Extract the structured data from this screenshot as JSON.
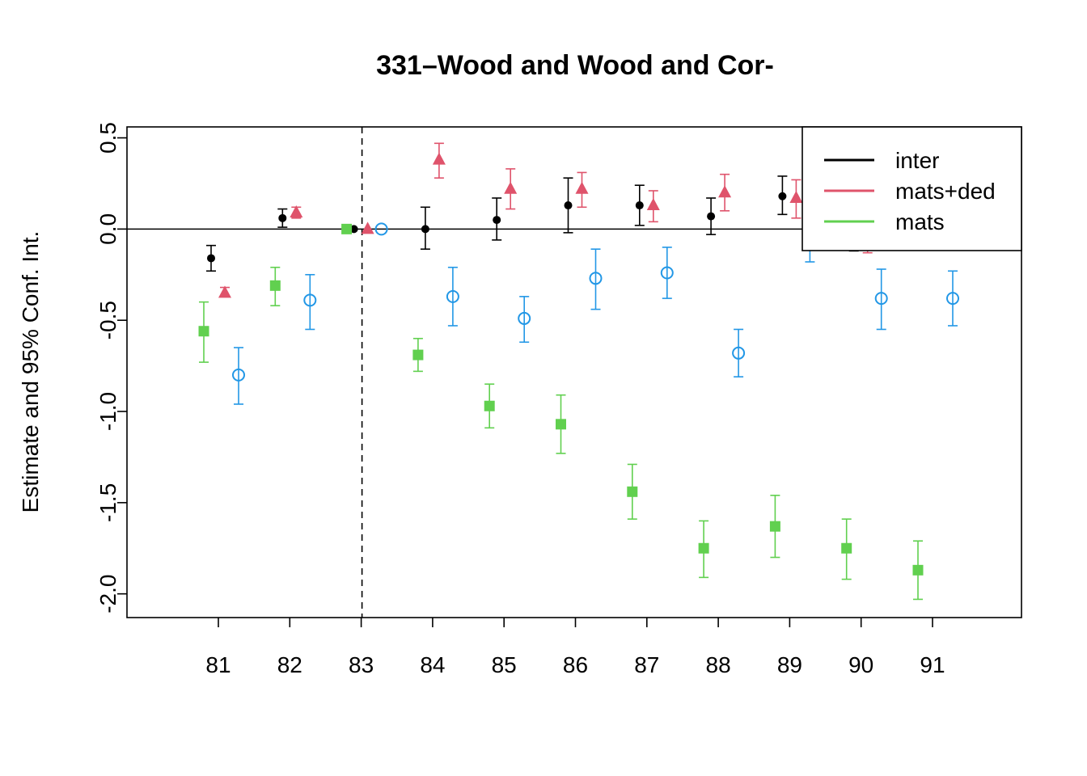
{
  "chart_data": {
    "type": "scatter",
    "title": "331–Wood and Wood and Cor-",
    "xlabel": "",
    "ylabel": "Estimate and 95% Conf. Int.",
    "categories": [
      "81",
      "82",
      "83",
      "84",
      "85",
      "86",
      "87",
      "88",
      "89",
      "90",
      "91"
    ],
    "ylim": [
      -2.13,
      0.56
    ],
    "yticks": [
      "0.5",
      "0.0",
      "-0.5",
      "-1.0",
      "-1.5",
      "-2.0"
    ],
    "ytick_values": [
      0.5,
      0.0,
      -0.5,
      -1.0,
      -1.5,
      -2.0
    ],
    "reference_year": "83",
    "reference_line_y": 0.0,
    "legend_position": "top-right",
    "series": [
      {
        "name": "inter",
        "color": "#000000",
        "marker": "filled-circle",
        "values": [
          -0.16,
          0.06,
          0.0,
          0.0,
          0.05,
          0.13,
          0.13,
          0.07,
          0.18,
          -0.05,
          null
        ],
        "lower": [
          -0.23,
          0.01,
          0.0,
          -0.11,
          -0.06,
          -0.02,
          0.02,
          -0.03,
          0.08,
          -0.12,
          null
        ],
        "upper": [
          -0.09,
          0.11,
          0.0,
          0.12,
          0.17,
          0.28,
          0.24,
          0.17,
          0.29,
          0.02,
          null
        ]
      },
      {
        "name": "mats+ded",
        "color": "#DF536B",
        "marker": "filled-triangle",
        "values": [
          -0.35,
          0.09,
          0.0,
          0.38,
          0.22,
          0.22,
          0.13,
          0.2,
          0.17,
          -0.04,
          null
        ],
        "lower": [
          -0.37,
          0.06,
          0.0,
          0.28,
          0.11,
          0.12,
          0.04,
          0.1,
          0.06,
          -0.13,
          null
        ],
        "upper": [
          -0.32,
          0.12,
          0.0,
          0.47,
          0.33,
          0.31,
          0.21,
          0.3,
          0.27,
          0.05,
          null
        ]
      },
      {
        "name": "mats",
        "color": "#61D04F",
        "marker": "filled-square",
        "values": [
          -0.56,
          -0.31,
          0.0,
          -0.69,
          -0.97,
          -1.07,
          -1.44,
          -1.75,
          -1.63,
          -1.75,
          -1.87
        ],
        "lower": [
          -0.73,
          -0.42,
          0.0,
          -0.78,
          -1.09,
          -1.23,
          -1.59,
          -1.91,
          -1.8,
          -1.92,
          -2.03
        ],
        "upper": [
          -0.4,
          -0.21,
          0.0,
          -0.6,
          -0.85,
          -0.91,
          -1.29,
          -1.6,
          -1.46,
          -1.59,
          -1.71
        ]
      },
      {
        "name": "",
        "color": "#2297E6",
        "marker": "open-circle",
        "values": [
          -0.8,
          -0.39,
          0.0,
          -0.37,
          -0.49,
          -0.27,
          -0.24,
          -0.68,
          -0.05,
          -0.38,
          -0.38
        ],
        "lower": [
          -0.96,
          -0.55,
          0.0,
          -0.53,
          -0.62,
          -0.44,
          -0.38,
          -0.81,
          -0.18,
          -0.55,
          -0.53
        ],
        "upper": [
          -0.65,
          -0.25,
          0.0,
          -0.21,
          -0.37,
          -0.11,
          -0.1,
          -0.55,
          0.08,
          -0.22,
          -0.23
        ]
      }
    ],
    "legend": [
      {
        "label": "inter",
        "color": "#000000"
      },
      {
        "label": "mats+ded",
        "color": "#DF536B"
      },
      {
        "label": "mats",
        "color": "#61D04F"
      }
    ]
  }
}
